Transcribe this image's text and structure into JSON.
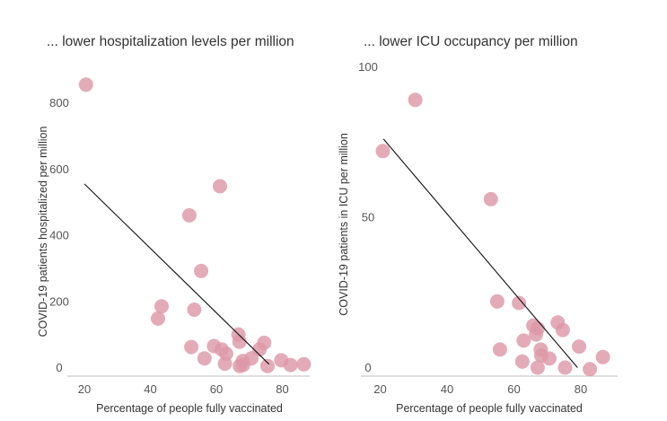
{
  "colors": {
    "point": "#dd98a8",
    "trendline": "#111111",
    "axis": "#bdbdbd",
    "text": "#333333"
  },
  "chart_data": [
    {
      "type": "scatter",
      "title": "... lower hospitalization levels per million",
      "xlabel": "Percentage of people fully vaccinated",
      "ylabel": "COVID-19 patients hospitalized per million",
      "xlim": [
        15,
        88
      ],
      "ylim": [
        0,
        880
      ],
      "xticks": [
        "20",
        "40",
        "60",
        "80"
      ],
      "xtick_values": [
        20,
        40,
        60,
        80
      ],
      "yticks": [
        "0",
        "200",
        "400",
        "600",
        "800"
      ],
      "ytick_values": [
        0,
        200,
        400,
        600,
        800
      ],
      "grid": false,
      "trendline": {
        "x": [
          20,
          76
        ],
        "y": [
          555,
          10
        ]
      },
      "points": [
        {
          "x": 20.5,
          "y": 855
        },
        {
          "x": 42.3,
          "y": 148
        },
        {
          "x": 43.4,
          "y": 185
        },
        {
          "x": 51.8,
          "y": 460
        },
        {
          "x": 52.4,
          "y": 62
        },
        {
          "x": 53.3,
          "y": 175
        },
        {
          "x": 55.4,
          "y": 292
        },
        {
          "x": 56.4,
          "y": 28
        },
        {
          "x": 59.3,
          "y": 65
        },
        {
          "x": 61.1,
          "y": 548
        },
        {
          "x": 61.6,
          "y": 55
        },
        {
          "x": 62.6,
          "y": 12
        },
        {
          "x": 63.0,
          "y": 42
        },
        {
          "x": 66.7,
          "y": 100
        },
        {
          "x": 67.0,
          "y": 78
        },
        {
          "x": 67.1,
          "y": 5
        },
        {
          "x": 68.0,
          "y": 20
        },
        {
          "x": 68.1,
          "y": 8
        },
        {
          "x": 70.6,
          "y": 28
        },
        {
          "x": 73.1,
          "y": 55
        },
        {
          "x": 74.5,
          "y": 75
        },
        {
          "x": 75.5,
          "y": 5
        },
        {
          "x": 79.7,
          "y": 22
        },
        {
          "x": 82.5,
          "y": 8
        },
        {
          "x": 86.5,
          "y": 10
        }
      ]
    },
    {
      "type": "scatter",
      "title": "... lower ICU occupancy per million",
      "xlabel": "Percentage of people fully vaccinated",
      "ylabel": "COVID-19 patients in ICU per million",
      "xlim": [
        15,
        88
      ],
      "ylim": [
        0,
        100
      ],
      "xticks": [
        "20",
        "40",
        "60",
        "80"
      ],
      "xtick_values": [
        20,
        40,
        60,
        80
      ],
      "yticks": [
        "0",
        "50",
        "100"
      ],
      "ytick_values": [
        0,
        50,
        100
      ],
      "grid": false,
      "trendline": {
        "x": [
          21,
          79
        ],
        "y": [
          76,
          0
        ]
      },
      "points": [
        {
          "x": 20.8,
          "y": 72
        },
        {
          "x": 30.5,
          "y": 89
        },
        {
          "x": 53.1,
          "y": 56
        },
        {
          "x": 55.0,
          "y": 22
        },
        {
          "x": 55.8,
          "y": 6
        },
        {
          "x": 61.5,
          "y": 21.5
        },
        {
          "x": 62.5,
          "y": 2
        },
        {
          "x": 62.9,
          "y": 9
        },
        {
          "x": 65.8,
          "y": 14
        },
        {
          "x": 66.6,
          "y": 11
        },
        {
          "x": 67.1,
          "y": 13
        },
        {
          "x": 67.1,
          "y": 0
        },
        {
          "x": 68.0,
          "y": 6
        },
        {
          "x": 68.2,
          "y": 4
        },
        {
          "x": 70.6,
          "y": 3
        },
        {
          "x": 73.1,
          "y": 15
        },
        {
          "x": 74.6,
          "y": 12.5
        },
        {
          "x": 75.3,
          "y": 0
        },
        {
          "x": 79.5,
          "y": 7
        },
        {
          "x": 82.7,
          "y": -0.5
        },
        {
          "x": 86.6,
          "y": 3.5
        }
      ]
    }
  ]
}
